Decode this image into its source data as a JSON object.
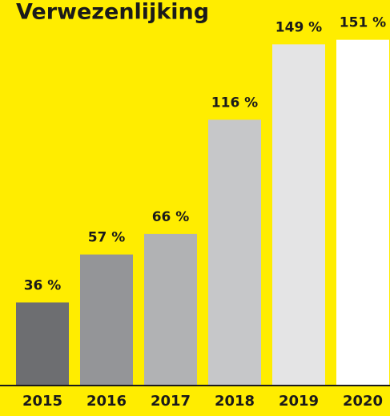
{
  "chart_data": {
    "type": "bar",
    "title": "Verwezenlijking",
    "categories": [
      "2015",
      "2016",
      "2017",
      "2018",
      "2019",
      "2020"
    ],
    "values": [
      36,
      57,
      66,
      116,
      149,
      151
    ],
    "value_labels": [
      "36 %",
      "57 %",
      "66 %",
      "116 %",
      "149 %",
      "151 %"
    ],
    "colors": [
      "#6d6e71",
      "#949598",
      "#b1b2b4",
      "#c6c7c9",
      "#e4e4e5",
      "#ffffff"
    ]
  }
}
